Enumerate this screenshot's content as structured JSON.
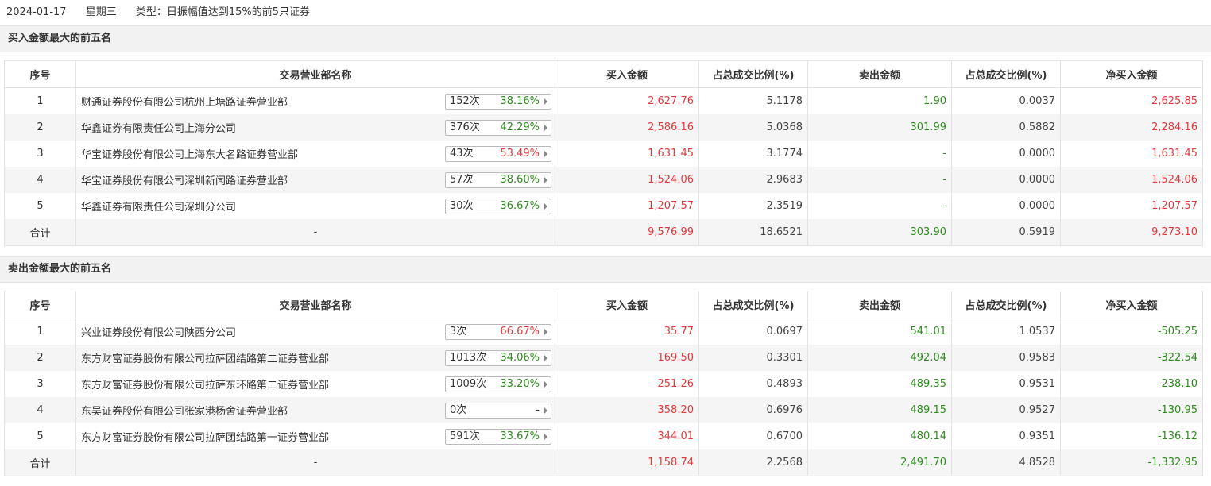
{
  "header": {
    "date": "2024-01-17",
    "weekday": "星期三",
    "type": "类型：日振幅值达到15%的前5只证券"
  },
  "colors": {
    "up": "#e4393c",
    "down": "#2e8b1e",
    "neutral": "#333333"
  },
  "columns": {
    "idx": "序号",
    "name": "交易营业部名称",
    "buy": "买入金额",
    "buy_pct": "占总成交比例(%)",
    "sell": "卖出金额",
    "sell_pct": "占总成交比例(%)",
    "net": "净买入金额"
  },
  "buy_section": {
    "title": "买入金额最大的前五名",
    "rows": [
      {
        "idx": "1",
        "name": "财通证券股份有限公司杭州上塘路证券营业部",
        "count": "152次",
        "rate": "38.16%",
        "rate_color": "green",
        "buy": "2,627.76",
        "buy_pct": "5.1178",
        "sell": "1.90",
        "sell_pct": "0.0037",
        "net": "2,625.85",
        "net_color": "red"
      },
      {
        "idx": "2",
        "name": "华鑫证券有限责任公司上海分公司",
        "count": "376次",
        "rate": "42.29%",
        "rate_color": "green",
        "buy": "2,586.16",
        "buy_pct": "5.0368",
        "sell": "301.99",
        "sell_pct": "0.5882",
        "net": "2,284.16",
        "net_color": "red"
      },
      {
        "idx": "3",
        "name": "华宝证券股份有限公司上海东大名路证券营业部",
        "count": "43次",
        "rate": "53.49%",
        "rate_color": "red",
        "buy": "1,631.45",
        "buy_pct": "3.1774",
        "sell": "-",
        "sell_pct": "0.0000",
        "net": "1,631.45",
        "net_color": "red"
      },
      {
        "idx": "4",
        "name": "华宝证券股份有限公司深圳新闻路证券营业部",
        "count": "57次",
        "rate": "38.60%",
        "rate_color": "green",
        "buy": "1,524.06",
        "buy_pct": "2.9683",
        "sell": "-",
        "sell_pct": "0.0000",
        "net": "1,524.06",
        "net_color": "red"
      },
      {
        "idx": "5",
        "name": "华鑫证券有限责任公司深圳分公司",
        "count": "30次",
        "rate": "36.67%",
        "rate_color": "green",
        "buy": "1,207.57",
        "buy_pct": "2.3519",
        "sell": "-",
        "sell_pct": "0.0000",
        "net": "1,207.57",
        "net_color": "red"
      }
    ],
    "total": {
      "label": "合计",
      "name": "-",
      "buy": "9,576.99",
      "buy_pct": "18.6521",
      "sell": "303.90",
      "sell_pct": "0.5919",
      "net": "9,273.10",
      "net_color": "red"
    }
  },
  "sell_section": {
    "title": "卖出金额最大的前五名",
    "rows": [
      {
        "idx": "1",
        "name": "兴业证券股份有限公司陕西分公司",
        "count": "3次",
        "rate": "66.67%",
        "rate_color": "red",
        "buy": "35.77",
        "buy_pct": "0.0697",
        "sell": "541.01",
        "sell_pct": "1.0537",
        "net": "-505.25",
        "net_color": "green"
      },
      {
        "idx": "2",
        "name": "东方财富证券股份有限公司拉萨团结路第二证券营业部",
        "count": "1013次",
        "rate": "34.06%",
        "rate_color": "green",
        "buy": "169.50",
        "buy_pct": "0.3301",
        "sell": "492.04",
        "sell_pct": "0.9583",
        "net": "-322.54",
        "net_color": "green"
      },
      {
        "idx": "3",
        "name": "东方财富证券股份有限公司拉萨东环路第二证券营业部",
        "count": "1009次",
        "rate": "33.20%",
        "rate_color": "green",
        "buy": "251.26",
        "buy_pct": "0.4893",
        "sell": "489.35",
        "sell_pct": "0.9531",
        "net": "-238.10",
        "net_color": "green"
      },
      {
        "idx": "4",
        "name": "东吴证券股份有限公司张家港杨舍证券营业部",
        "count": "0次",
        "rate": "-",
        "rate_color": "dark",
        "buy": "358.20",
        "buy_pct": "0.6976",
        "sell": "489.15",
        "sell_pct": "0.9527",
        "net": "-130.95",
        "net_color": "green"
      },
      {
        "idx": "5",
        "name": "东方财富证券股份有限公司拉萨团结路第一证券营业部",
        "count": "591次",
        "rate": "33.67%",
        "rate_color": "green",
        "buy": "344.01",
        "buy_pct": "0.6700",
        "sell": "480.14",
        "sell_pct": "0.9351",
        "net": "-136.12",
        "net_color": "green"
      }
    ],
    "total": {
      "label": "合计",
      "name": "-",
      "buy": "1,158.74",
      "buy_pct": "2.2568",
      "sell": "2,491.70",
      "sell_pct": "4.8528",
      "net": "-1,332.95",
      "net_color": "green"
    }
  }
}
